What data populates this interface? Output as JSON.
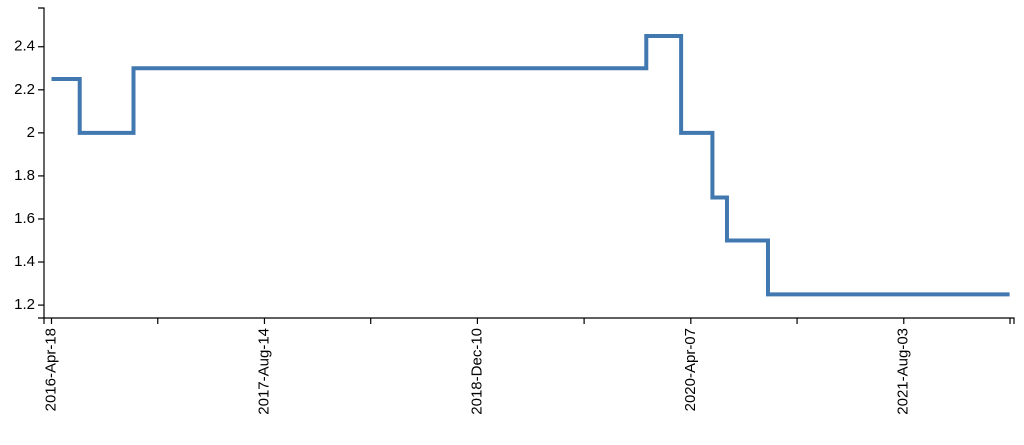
{
  "chart_data": {
    "type": "line",
    "interpolation": "step-after",
    "title": "",
    "xlabel": "",
    "ylabel": "",
    "x_scale": "time",
    "xlim": [
      "2016-04-01",
      "2022-04-10"
    ],
    "ylim": [
      1.14,
      2.58
    ],
    "grid": false,
    "legend": "none",
    "x_ticks": [
      "2016-04-18",
      "2016-12-15",
      "2017-08-14",
      "2018-04-12",
      "2018-12-10",
      "2019-08-09",
      "2020-04-07",
      "2020-12-04",
      "2021-08-03",
      "2022-04-01"
    ],
    "x_tick_labels": [
      "2016-Apr-18",
      "",
      "2017-Aug-14",
      "",
      "2018-Dec-10",
      "",
      "2020-Apr-07",
      "",
      "2021-Aug-03",
      ""
    ],
    "y_ticks": [
      1.2,
      1.4,
      1.6,
      1.8,
      2,
      2.2,
      2.4
    ],
    "y_tick_labels": [
      "1.2",
      "1.4",
      "1.6",
      "1.8",
      "2",
      "2.2",
      "2.4"
    ],
    "series": [
      {
        "color": "#4178B0",
        "x": [
          "2016-04-18",
          "2016-06-20",
          "2016-06-21",
          "2016-10-20",
          "2016-10-21",
          "2019-12-18",
          "2019-12-28",
          "2020-03-14",
          "2020-03-16",
          "2020-05-26",
          "2020-06-28",
          "2020-09-29",
          "2022-03-31"
        ],
        "y": [
          2.25,
          2.25,
          2.0,
          2.0,
          2.3,
          2.3,
          2.45,
          2.45,
          2.0,
          1.7,
          1.5,
          1.25,
          1.25
        ]
      }
    ]
  }
}
